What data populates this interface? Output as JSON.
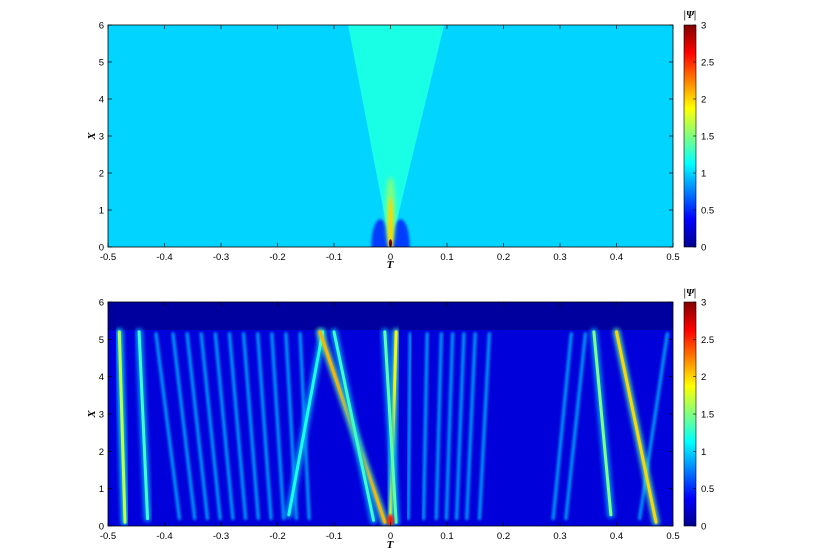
{
  "chart_data": [
    {
      "type": "heatmap",
      "xlabel": "T",
      "ylabel": "X",
      "xlim": [
        -0.5,
        0.5
      ],
      "ylim": [
        0,
        6
      ],
      "xticks": [
        "-0.5",
        "-0.4",
        "-0.3",
        "-0.2",
        "-0.1",
        "0",
        "0.1",
        "0.2",
        "0.3",
        "0.4",
        "0.5"
      ],
      "yticks": [
        "0",
        "1",
        "2",
        "3",
        "4",
        "5",
        "6"
      ],
      "colorbar": {
        "title": "|Ψ|",
        "range": [
          0,
          3
        ],
        "ticks": [
          "0",
          "0.5",
          "1",
          "1.5",
          "2",
          "2.5",
          "3"
        ],
        "colormap": "jet"
      },
      "background_level": 1.0,
      "features": {
        "wedge": {
          "level": 1.2,
          "apex": [
            0.0,
            0.0
          ],
          "top_left_T": -0.075,
          "top_right_T": 0.095,
          "top_X": 6
        },
        "central_peak": {
          "T": 0.0,
          "X_peak": 0.1,
          "max_level": 3.0,
          "X_extent": 1.9
        },
        "side_dips": [
          {
            "T": -0.018,
            "level": 0.55,
            "X_extent": 0.75
          },
          {
            "T": 0.018,
            "level": 0.55,
            "X_extent": 0.75
          }
        ]
      }
    },
    {
      "type": "heatmap",
      "xlabel": "T",
      "ylabel": "X",
      "xlim": [
        -0.5,
        0.5
      ],
      "ylim": [
        0,
        6
      ],
      "xticks": [
        "-0.5",
        "-0.4",
        "-0.3",
        "-0.2",
        "-0.1",
        "0",
        "0.1",
        "0.2",
        "0.3",
        "0.4",
        "0.5"
      ],
      "yticks": [
        "0",
        "1",
        "2",
        "3",
        "4",
        "5",
        "6"
      ],
      "colorbar": {
        "title": "|Ψ|",
        "range": [
          0,
          3
        ],
        "ticks": [
          "0",
          "0.5",
          "1",
          "1.5",
          "2",
          "2.5",
          "3"
        ],
        "colormap": "jet"
      },
      "background_level": 0.25,
      "field_top_X": 5.25,
      "strands": [
        {
          "T0": -0.47,
          "T1": -0.48,
          "X0": 0.1,
          "X1": 5.2,
          "level": 1.7
        },
        {
          "T0": -0.43,
          "T1": -0.445,
          "X0": 0.2,
          "X1": 5.2,
          "level": 1.3
        },
        {
          "T0": -0.18,
          "T1": -0.12,
          "X0": 0.3,
          "X1": 5.2,
          "level": 1.2
        },
        {
          "T0": -0.01,
          "T1": -0.125,
          "X0": 0.1,
          "X1": 5.2,
          "level": 2.1
        },
        {
          "T0": -0.03,
          "T1": -0.1,
          "X0": 0.15,
          "X1": 5.2,
          "level": 1.3
        },
        {
          "T0": 0.0,
          "T1": 0.01,
          "X0": 0.1,
          "X1": 5.2,
          "level": 1.9
        },
        {
          "T0": 0.01,
          "T1": -0.01,
          "X0": 0.1,
          "X1": 5.2,
          "level": 1.4
        },
        {
          "T0": 0.39,
          "T1": 0.36,
          "X0": 0.3,
          "X1": 5.2,
          "level": 1.5
        },
        {
          "T0": 0.47,
          "T1": 0.4,
          "X0": 0.1,
          "X1": 5.2,
          "level": 2.0
        }
      ],
      "faint_strands_T_top": [
        -0.415,
        -0.385,
        -0.36,
        -0.335,
        -0.31,
        -0.285,
        -0.26,
        -0.235,
        -0.21,
        -0.185,
        -0.16,
        0.035,
        0.065,
        0.09,
        0.11,
        0.13,
        0.15,
        0.175,
        0.32,
        0.345,
        0.49
      ],
      "faint_level": 1.0
    }
  ]
}
